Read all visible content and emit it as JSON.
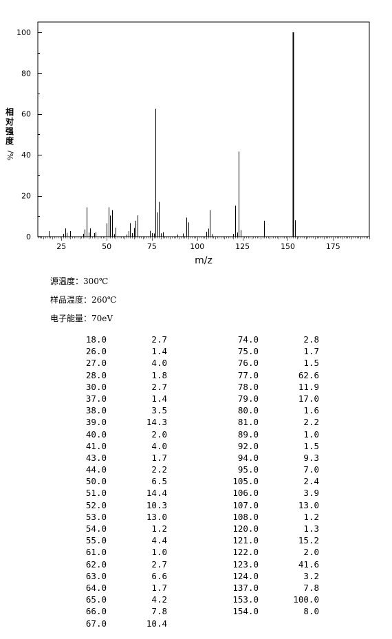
{
  "chart_data": {
    "type": "bar",
    "xlabel": "m/z",
    "ylabel_chars": [
      "相",
      "对",
      "强",
      "度"
    ],
    "ylabel_unit": "%/",
    "xlim": [
      12,
      195
    ],
    "ylim": [
      0,
      105
    ],
    "xticks": [
      25,
      50,
      75,
      100,
      125,
      150,
      175
    ],
    "yticks": [
      0,
      20,
      40,
      60,
      80,
      100
    ],
    "peaks": [
      [
        18.0,
        2.7
      ],
      [
        26.0,
        1.4
      ],
      [
        27.0,
        4.0
      ],
      [
        28.0,
        1.8
      ],
      [
        30.0,
        2.7
      ],
      [
        37.0,
        1.4
      ],
      [
        38.0,
        3.5
      ],
      [
        39.0,
        14.3
      ],
      [
        40.0,
        2.0
      ],
      [
        41.0,
        4.0
      ],
      [
        43.0,
        1.7
      ],
      [
        44.0,
        2.2
      ],
      [
        50.0,
        6.5
      ],
      [
        51.0,
        14.4
      ],
      [
        52.0,
        10.3
      ],
      [
        53.0,
        13.0
      ],
      [
        54.0,
        1.2
      ],
      [
        55.0,
        4.4
      ],
      [
        61.0,
        1.0
      ],
      [
        62.0,
        2.7
      ],
      [
        63.0,
        6.6
      ],
      [
        64.0,
        1.7
      ],
      [
        65.0,
        4.2
      ],
      [
        66.0,
        7.8
      ],
      [
        67.0,
        10.4
      ],
      [
        74.0,
        2.8
      ],
      [
        75.0,
        1.7
      ],
      [
        76.0,
        1.5
      ],
      [
        77.0,
        62.6
      ],
      [
        78.0,
        11.9
      ],
      [
        79.0,
        17.0
      ],
      [
        80.0,
        1.6
      ],
      [
        81.0,
        2.2
      ],
      [
        89.0,
        1.0
      ],
      [
        92.0,
        1.5
      ],
      [
        94.0,
        9.3
      ],
      [
        95.0,
        7.0
      ],
      [
        105.0,
        2.4
      ],
      [
        106.0,
        3.9
      ],
      [
        107.0,
        13.0
      ],
      [
        108.0,
        1.2
      ],
      [
        120.0,
        1.3
      ],
      [
        121.0,
        15.2
      ],
      [
        122.0,
        2.0
      ],
      [
        123.0,
        41.6
      ],
      [
        124.0,
        3.2
      ],
      [
        137.0,
        7.8
      ],
      [
        153.0,
        100.0
      ],
      [
        154.0,
        8.0
      ]
    ]
  },
  "conditions": {
    "source_temp": "源温度：300℃",
    "sample_temp": "样品温度：260℃",
    "electron_energy": "电子能量：70eV"
  },
  "table": {
    "left": [
      [
        "18.0",
        "2.7"
      ],
      [
        "26.0",
        "1.4"
      ],
      [
        "27.0",
        "4.0"
      ],
      [
        "28.0",
        "1.8"
      ],
      [
        "30.0",
        "2.7"
      ],
      [
        "37.0",
        "1.4"
      ],
      [
        "38.0",
        "3.5"
      ],
      [
        "39.0",
        "14.3"
      ],
      [
        "40.0",
        "2.0"
      ],
      [
        "41.0",
        "4.0"
      ],
      [
        "43.0",
        "1.7"
      ],
      [
        "44.0",
        "2.2"
      ],
      [
        "50.0",
        "6.5"
      ],
      [
        "51.0",
        "14.4"
      ],
      [
        "52.0",
        "10.3"
      ],
      [
        "53.0",
        "13.0"
      ],
      [
        "54.0",
        "1.2"
      ],
      [
        "55.0",
        "4.4"
      ],
      [
        "61.0",
        "1.0"
      ],
      [
        "62.0",
        "2.7"
      ],
      [
        "63.0",
        "6.6"
      ],
      [
        "64.0",
        "1.7"
      ],
      [
        "65.0",
        "4.2"
      ],
      [
        "66.0",
        "7.8"
      ],
      [
        "67.0",
        "10.4"
      ]
    ],
    "right": [
      [
        "74.0",
        "2.8"
      ],
      [
        "75.0",
        "1.7"
      ],
      [
        "76.0",
        "1.5"
      ],
      [
        "77.0",
        "62.6"
      ],
      [
        "78.0",
        "11.9"
      ],
      [
        "79.0",
        "17.0"
      ],
      [
        "80.0",
        "1.6"
      ],
      [
        "81.0",
        "2.2"
      ],
      [
        "89.0",
        "1.0"
      ],
      [
        "92.0",
        "1.5"
      ],
      [
        "94.0",
        "9.3"
      ],
      [
        "95.0",
        "7.0"
      ],
      [
        "105.0",
        "2.4"
      ],
      [
        "106.0",
        "3.9"
      ],
      [
        "107.0",
        "13.0"
      ],
      [
        "108.0",
        "1.2"
      ],
      [
        "120.0",
        "1.3"
      ],
      [
        "121.0",
        "15.2"
      ],
      [
        "122.0",
        "2.0"
      ],
      [
        "123.0",
        "41.6"
      ],
      [
        "124.0",
        "3.2"
      ],
      [
        "137.0",
        "7.8"
      ],
      [
        "153.0",
        "100.0"
      ],
      [
        "154.0",
        "8.0"
      ]
    ]
  }
}
